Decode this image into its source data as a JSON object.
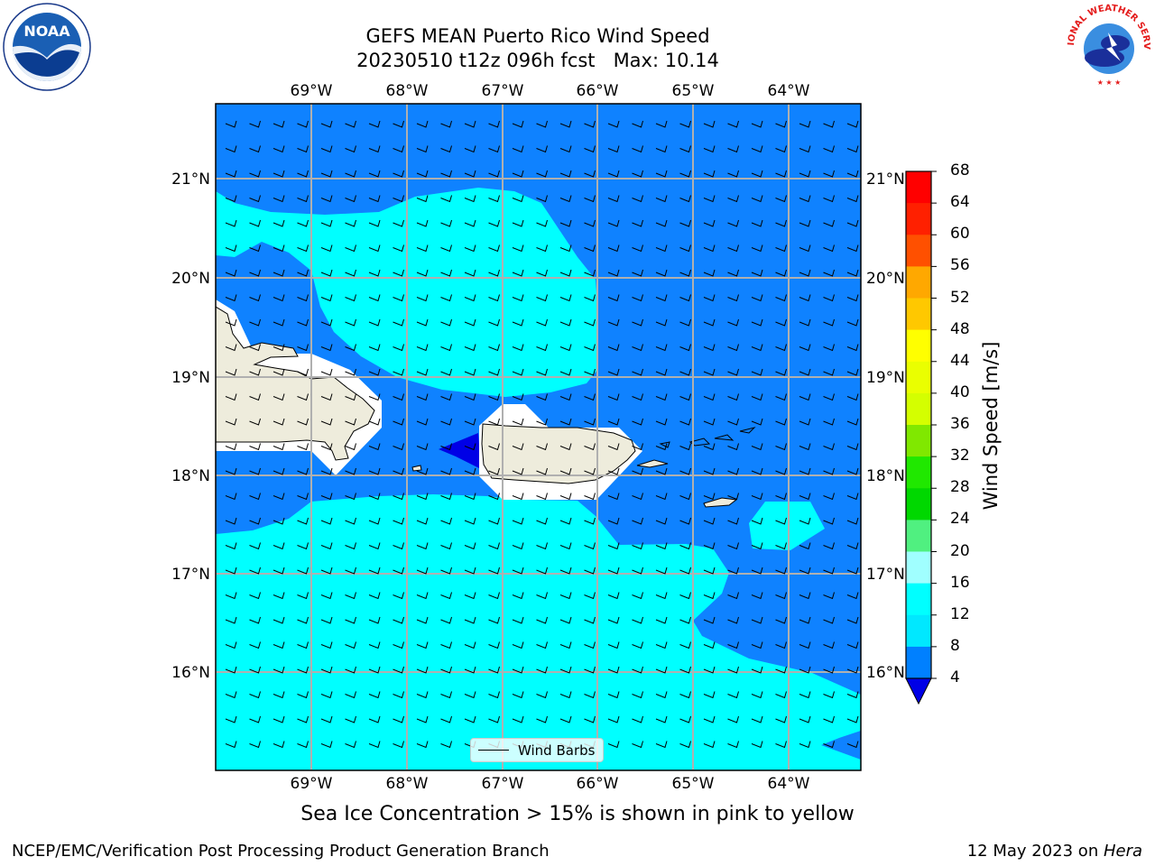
{
  "header": {
    "title_line1": "GEFS MEAN Puerto Rico Wind Speed",
    "title_line2": "20230510 t12z 096h fcst   Max: 10.14"
  },
  "logos": {
    "left": "NOAA",
    "left_ring_text": "NATIONAL OCEANIC AND ATMOSPHERIC ADMINISTRATION · U.S. DEPARTMENT OF COMMERCE",
    "right_ring_text": "NATIONAL WEATHER SERVICE"
  },
  "map": {
    "lon_labels": [
      "69°W",
      "68°W",
      "67°W",
      "66°W",
      "65°W",
      "64°W"
    ],
    "lat_labels": [
      "21°N",
      "20°N",
      "19°N",
      "18°N",
      "17°N",
      "16°N"
    ],
    "ocean_color": "#0f82ff",
    "light_color": "#00ffff",
    "land_color": "#eeecdc",
    "dark_color": "#0000e6",
    "legend_label": "Wind Barbs"
  },
  "colorbar": {
    "title": "Wind Speed [m/s]",
    "ticks": [
      "68",
      "64",
      "60",
      "56",
      "52",
      "48",
      "44",
      "40",
      "36",
      "32",
      "28",
      "24",
      "20",
      "16",
      "12",
      "8",
      "4"
    ],
    "colors_top_to_bottom": [
      "#ff0000",
      "#ff2000",
      "#ff5000",
      "#ff8000",
      "#ffa800",
      "#ffc800",
      "#ffff00",
      "#eaff00",
      "#d4ff00",
      "#c0ff00",
      "#80e800",
      "#20e800",
      "#00d800",
      "#50f080",
      "#a0ffff",
      "#50ffff",
      "#00ffff",
      "#00e8ff",
      "#0080ff",
      "#0000e6"
    ]
  },
  "caption": "Sea Ice Concentration > 15% is shown in pink to yellow",
  "footer": {
    "left": "NCEP/EMC/Verification Post Processing Product Generation Branch",
    "right_prefix": "12 May 2023 on ",
    "right_italic": "Hera"
  }
}
